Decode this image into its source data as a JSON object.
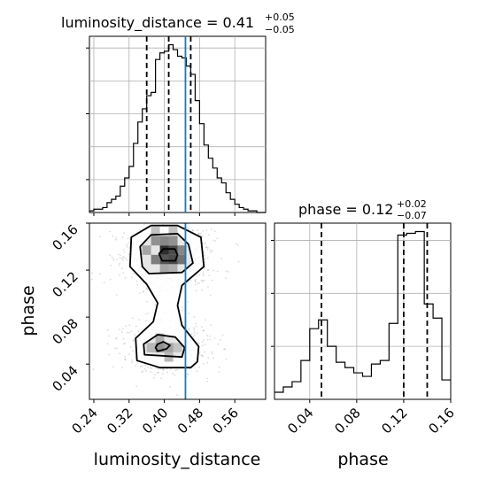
{
  "chart_data": {
    "type": "corner",
    "grid": true,
    "truth_color": "#1f77b4",
    "hist_color": "#000000",
    "contour_color": "#000000",
    "parameters": [
      "luminosity_distance",
      "phase"
    ],
    "axis_labels": {
      "x_bottom_left": "luminosity_distance",
      "x_bottom_right": "phase",
      "y_left": "phase"
    },
    "truths": {
      "luminosity_distance": 0.448
    },
    "titles": [
      {
        "name": "luminosity_distance = 0.41",
        "plus": "+0.05",
        "minus": "−0.05"
      },
      {
        "name": "phase = 0.12",
        "plus": "+0.02",
        "minus": "−0.07"
      }
    ],
    "luminosity_distance": {
      "range": [
        0.23,
        0.63
      ],
      "ticks": [
        0.24,
        0.32,
        0.4,
        0.48,
        0.56
      ],
      "tick_labels": [
        "0.24",
        "0.32",
        "0.40",
        "0.48",
        "0.56"
      ],
      "quantiles": [
        0.36,
        0.41,
        0.46
      ],
      "hist_bins": [
        0.23,
        0.24,
        0.25,
        0.26,
        0.27,
        0.28,
        0.29,
        0.3,
        0.31,
        0.32,
        0.33,
        0.34,
        0.35,
        0.36,
        0.37,
        0.38,
        0.39,
        0.4,
        0.41,
        0.42,
        0.43,
        0.44,
        0.45,
        0.46,
        0.47,
        0.48,
        0.49,
        0.5,
        0.51,
        0.52,
        0.53,
        0.54,
        0.55,
        0.56,
        0.57,
        0.58,
        0.59,
        0.6,
        0.61,
        0.62,
        0.63
      ],
      "hist_counts": [
        1,
        2,
        2,
        3,
        6,
        8,
        10,
        16,
        21,
        28,
        42,
        55,
        63,
        71,
        73,
        93,
        97,
        98,
        102,
        99,
        95,
        94,
        89,
        84,
        68,
        54,
        41,
        33,
        27,
        21,
        18,
        12,
        8,
        5,
        3,
        2,
        1,
        1,
        0,
        0
      ]
    },
    "phase": {
      "range": [
        0.01,
        0.16
      ],
      "ticks": [
        0.04,
        0.08,
        0.12,
        0.16
      ],
      "tick_labels": [
        "0.04",
        "0.08",
        "0.12",
        "0.16"
      ],
      "quantiles": [
        0.05,
        0.12,
        0.14
      ],
      "hist_bins": [
        0.01,
        0.0175,
        0.025,
        0.0325,
        0.04,
        0.0475,
        0.055,
        0.0625,
        0.07,
        0.0775,
        0.085,
        0.0925,
        0.1,
        0.1075,
        0.115,
        0.1225,
        0.13,
        0.1375,
        0.145,
        0.1525,
        0.16
      ],
      "hist_counts": [
        4,
        7,
        10,
        22,
        40,
        45,
        30,
        21,
        18,
        15,
        13,
        20,
        22,
        43,
        93,
        94,
        95,
        54,
        46,
        11
      ]
    },
    "joint": {
      "contours": [
        {
          "level": 0.393,
          "regions": [
            [
              [
                0.395,
                0.128
              ],
              [
                0.425,
                0.128
              ],
              [
                0.43,
                0.133
              ],
              [
                0.424,
                0.138
              ],
              [
                0.398,
                0.138
              ],
              [
                0.388,
                0.134
              ]
            ],
            [
              [
                0.385,
                0.051
              ],
              [
                0.405,
                0.053
              ],
              [
                0.413,
                0.056
              ],
              [
                0.398,
                0.059
              ],
              [
                0.385,
                0.057
              ],
              [
                0.38,
                0.054
              ]
            ]
          ]
        },
        {
          "level": 0.865,
          "regions": [
            [
              [
                0.365,
                0.117
              ],
              [
                0.44,
                0.118
              ],
              [
                0.465,
                0.126
              ],
              [
                0.455,
                0.142
              ],
              [
                0.43,
                0.151
              ],
              [
                0.37,
                0.15
              ],
              [
                0.345,
                0.14
              ],
              [
                0.35,
                0.123
              ]
            ],
            [
              [
                0.355,
                0.048
              ],
              [
                0.44,
                0.046
              ],
              [
                0.446,
                0.054
              ],
              [
                0.425,
                0.063
              ],
              [
                0.385,
                0.065
              ],
              [
                0.353,
                0.057
              ]
            ]
          ]
        },
        {
          "level": 0.989,
          "regions": [
            [
              [
                0.39,
                0.037
              ],
              [
                0.46,
                0.037
              ],
              [
                0.475,
                0.042
              ],
              [
                0.478,
                0.055
              ],
              [
                0.44,
                0.073
              ],
              [
                0.43,
                0.09
              ],
              [
                0.44,
                0.107
              ],
              [
                0.49,
                0.123
              ],
              [
                0.483,
                0.148
              ],
              [
                0.43,
                0.158
              ],
              [
                0.37,
                0.158
              ],
              [
                0.325,
                0.148
              ],
              [
                0.322,
                0.123
              ],
              [
                0.36,
                0.108
              ],
              [
                0.385,
                0.092
              ],
              [
                0.375,
                0.076
              ],
              [
                0.335,
                0.062
              ],
              [
                0.338,
                0.043
              ]
            ]
          ]
        }
      ],
      "density_cells": [
        {
          "x": 0.39,
          "y": 0.133,
          "w": 0.02,
          "h": 0.008,
          "level": 0.95
        },
        {
          "x": 0.41,
          "y": 0.133,
          "w": 0.02,
          "h": 0.008,
          "level": 0.8
        },
        {
          "x": 0.37,
          "y": 0.125,
          "w": 0.02,
          "h": 0.008,
          "level": 0.55
        },
        {
          "x": 0.39,
          "y": 0.125,
          "w": 0.02,
          "h": 0.008,
          "level": 0.75
        },
        {
          "x": 0.41,
          "y": 0.125,
          "w": 0.02,
          "h": 0.008,
          "level": 0.8
        },
        {
          "x": 0.43,
          "y": 0.125,
          "w": 0.02,
          "h": 0.008,
          "level": 0.6
        },
        {
          "x": 0.37,
          "y": 0.141,
          "w": 0.02,
          "h": 0.008,
          "level": 0.45
        },
        {
          "x": 0.39,
          "y": 0.141,
          "w": 0.02,
          "h": 0.008,
          "level": 0.5
        },
        {
          "x": 0.41,
          "y": 0.141,
          "w": 0.02,
          "h": 0.008,
          "level": 0.45
        },
        {
          "x": 0.35,
          "y": 0.133,
          "w": 0.02,
          "h": 0.008,
          "level": 0.35
        },
        {
          "x": 0.43,
          "y": 0.133,
          "w": 0.02,
          "h": 0.008,
          "level": 0.5
        },
        {
          "x": 0.39,
          "y": 0.117,
          "w": 0.02,
          "h": 0.008,
          "level": 0.35
        },
        {
          "x": 0.41,
          "y": 0.117,
          "w": 0.02,
          "h": 0.008,
          "level": 0.3
        },
        {
          "x": 0.37,
          "y": 0.149,
          "w": 0.02,
          "h": 0.008,
          "level": 0.2
        },
        {
          "x": 0.41,
          "y": 0.149,
          "w": 0.02,
          "h": 0.008,
          "level": 0.2
        },
        {
          "x": 0.38,
          "y": 0.05,
          "w": 0.02,
          "h": 0.008,
          "level": 0.45
        },
        {
          "x": 0.4,
          "y": 0.05,
          "w": 0.02,
          "h": 0.008,
          "level": 0.35
        },
        {
          "x": 0.36,
          "y": 0.05,
          "w": 0.02,
          "h": 0.008,
          "level": 0.25
        },
        {
          "x": 0.38,
          "y": 0.058,
          "w": 0.02,
          "h": 0.008,
          "level": 0.3
        },
        {
          "x": 0.4,
          "y": 0.042,
          "w": 0.02,
          "h": 0.008,
          "level": 0.25
        },
        {
          "x": 0.42,
          "y": 0.05,
          "w": 0.02,
          "h": 0.008,
          "level": 0.2
        }
      ]
    }
  }
}
